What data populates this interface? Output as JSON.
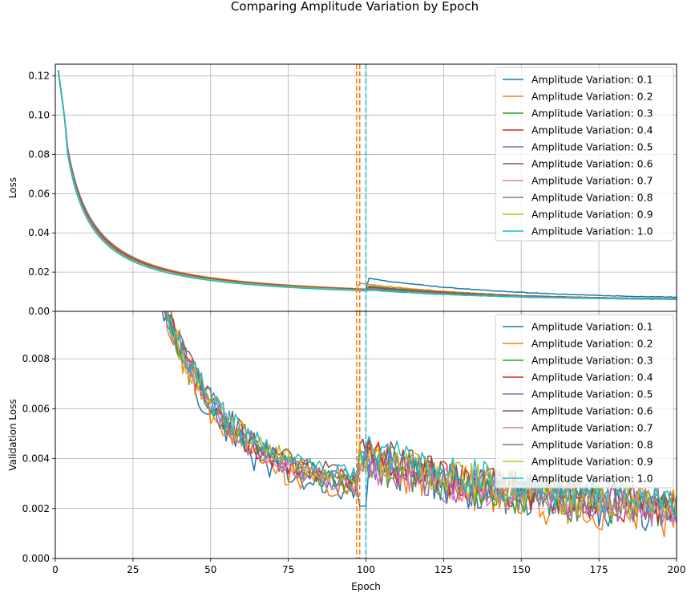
{
  "figure": {
    "title": "Comparing Amplitude Variation by Epoch"
  },
  "chart_data": [
    {
      "id": "loss",
      "type": "line",
      "title": "",
      "xlabel": "",
      "ylabel": "Loss",
      "xlim": [
        0,
        200
      ],
      "ylim": [
        0,
        0.126
      ],
      "xticks": [
        0,
        25,
        50,
        75,
        100,
        125,
        150,
        175,
        200
      ],
      "xtick_labels": [],
      "yticks": [
        0.0,
        0.02,
        0.04,
        0.06,
        0.08,
        0.1,
        0.12
      ],
      "ytick_labels": [
        "0.00",
        "0.02",
        "0.04",
        "0.06",
        "0.08",
        "0.10",
        "0.12"
      ],
      "grid": true,
      "legend": "upper right",
      "vlines": [
        {
          "x": 97,
          "color": "#ff7f0e",
          "style": "dashed"
        },
        {
          "x": 98,
          "color": "#ff7f0e",
          "style": "dashed"
        },
        {
          "x": 100,
          "color": "#17becf",
          "style": "dashed"
        }
      ],
      "series": [
        {
          "name": "Amplitude Variation: 0.1",
          "color": "#1f77b4",
          "x_start": 1,
          "x_end": 200,
          "start": 0.123,
          "decay": 6.2,
          "switch": 100,
          "post_start": 0.017,
          "post_end": 0.006,
          "end_pre": 0.0052
        },
        {
          "name": "Amplitude Variation: 0.2",
          "color": "#ff7f0e",
          "x_start": 1,
          "x_end": 200,
          "start": 0.122,
          "decay": 6.0,
          "switch": 97,
          "post_start": 0.0145,
          "post_end": 0.005,
          "end_pre": 0.0055
        },
        {
          "name": "Amplitude Variation: 0.3",
          "color": "#2ca02c",
          "x_start": 1,
          "x_end": 200,
          "start": 0.122,
          "decay": 6.1,
          "switch": 100,
          "post_start": 0.013,
          "post_end": 0.0055,
          "end_pre": 0.0053
        },
        {
          "name": "Amplitude Variation: 0.4",
          "color": "#d62728",
          "x_start": 1,
          "x_end": 200,
          "start": 0.122,
          "decay": 6.3,
          "switch": 100,
          "post_start": 0.0125,
          "post_end": 0.0055,
          "end_pre": 0.0054
        },
        {
          "name": "Amplitude Variation: 0.5",
          "color": "#9467bd",
          "x_start": 1,
          "x_end": 200,
          "start": 0.122,
          "decay": 6.4,
          "switch": 100,
          "post_start": 0.012,
          "post_end": 0.0055,
          "end_pre": 0.0054
        },
        {
          "name": "Amplitude Variation: 0.6",
          "color": "#8c564b",
          "x_start": 1,
          "x_end": 200,
          "start": 0.122,
          "decay": 6.5,
          "switch": 100,
          "post_start": 0.0125,
          "post_end": 0.0056,
          "end_pre": 0.0055
        },
        {
          "name": "Amplitude Variation: 0.7",
          "color": "#e377c2",
          "x_start": 1,
          "x_end": 200,
          "start": 0.122,
          "decay": 6.2,
          "switch": 100,
          "post_start": 0.0115,
          "post_end": 0.0055,
          "end_pre": 0.0052
        },
        {
          "name": "Amplitude Variation: 0.8",
          "color": "#7f7f7f",
          "x_start": 1,
          "x_end": 200,
          "start": 0.122,
          "decay": 6.1,
          "switch": 100,
          "post_start": 0.0115,
          "post_end": 0.0056,
          "end_pre": 0.0053
        },
        {
          "name": "Amplitude Variation: 0.9",
          "color": "#bcbd22",
          "x_start": 1,
          "x_end": 200,
          "start": 0.122,
          "decay": 6.0,
          "switch": 100,
          "post_start": 0.011,
          "post_end": 0.0055,
          "end_pre": 0.0052
        },
        {
          "name": "Amplitude Variation: 1.0",
          "color": "#17becf",
          "x_start": 1,
          "x_end": 200,
          "start": 0.122,
          "decay": 5.8,
          "switch": 100,
          "post_start": 0.011,
          "post_end": 0.0055,
          "end_pre": 0.005
        }
      ]
    },
    {
      "id": "val_loss",
      "type": "line",
      "title": "",
      "xlabel": "Epoch",
      "ylabel": "Validation Loss",
      "xlim": [
        0,
        200
      ],
      "ylim": [
        0,
        0.0099
      ],
      "xticks": [
        0,
        25,
        50,
        75,
        100,
        125,
        150,
        175,
        200
      ],
      "xtick_labels": [
        "0",
        "25",
        "50",
        "75",
        "100",
        "125",
        "150",
        "175",
        "200"
      ],
      "yticks": [
        0.0,
        0.002,
        0.004,
        0.006,
        0.008
      ],
      "ytick_labels": [
        "0.000",
        "0.002",
        "0.004",
        "0.006",
        "0.008"
      ],
      "grid": true,
      "legend": "upper right",
      "vlines": [
        {
          "x": 97,
          "color": "#ff7f0e",
          "style": "dashed"
        },
        {
          "x": 98,
          "color": "#ff7f0e",
          "style": "dashed"
        },
        {
          "x": 100,
          "color": "#17becf",
          "style": "dashed"
        }
      ],
      "series": [
        {
          "name": "Amplitude Variation: 0.1",
          "color": "#1f77b4",
          "x_start": 34,
          "x_end": 200,
          "pre_end": 0.0022,
          "post_peak": 0.004,
          "end": 0.0013,
          "noise": 0.00055
        },
        {
          "name": "Amplitude Variation: 0.2",
          "color": "#ff7f0e",
          "x_start": 34,
          "x_end": 200,
          "pre_end": 0.0024,
          "post_peak": 0.0042,
          "end": 0.0012,
          "noise": 0.0006
        },
        {
          "name": "Amplitude Variation: 0.3",
          "color": "#2ca02c",
          "x_start": 34,
          "x_end": 200,
          "pre_end": 0.0027,
          "post_peak": 0.004,
          "end": 0.0014,
          "noise": 0.0005
        },
        {
          "name": "Amplitude Variation: 0.4",
          "color": "#d62728",
          "x_start": 34,
          "x_end": 200,
          "pre_end": 0.0028,
          "post_peak": 0.0042,
          "end": 0.0016,
          "noise": 0.0005
        },
        {
          "name": "Amplitude Variation: 0.5",
          "color": "#9467bd",
          "x_start": 34,
          "x_end": 200,
          "pre_end": 0.0027,
          "post_peak": 0.0039,
          "end": 0.0016,
          "noise": 0.0005
        },
        {
          "name": "Amplitude Variation: 0.6",
          "color": "#8c564b",
          "x_start": 34,
          "x_end": 200,
          "pre_end": 0.0029,
          "post_peak": 0.0043,
          "end": 0.0017,
          "noise": 0.0005
        },
        {
          "name": "Amplitude Variation: 0.7",
          "color": "#e377c2",
          "x_start": 34,
          "x_end": 200,
          "pre_end": 0.0026,
          "post_peak": 0.0038,
          "end": 0.0016,
          "noise": 0.00045
        },
        {
          "name": "Amplitude Variation: 0.8",
          "color": "#7f7f7f",
          "x_start": 34,
          "x_end": 200,
          "pre_end": 0.0028,
          "post_peak": 0.004,
          "end": 0.0017,
          "noise": 0.00045
        },
        {
          "name": "Amplitude Variation: 0.9",
          "color": "#bcbd22",
          "x_start": 34,
          "x_end": 200,
          "pre_end": 0.0029,
          "post_peak": 0.0041,
          "end": 0.0017,
          "noise": 0.0005
        },
        {
          "name": "Amplitude Variation: 1.0",
          "color": "#17becf",
          "x_start": 34,
          "x_end": 200,
          "pre_end": 0.003,
          "post_peak": 0.0045,
          "end": 0.0018,
          "noise": 0.00045
        }
      ]
    }
  ]
}
